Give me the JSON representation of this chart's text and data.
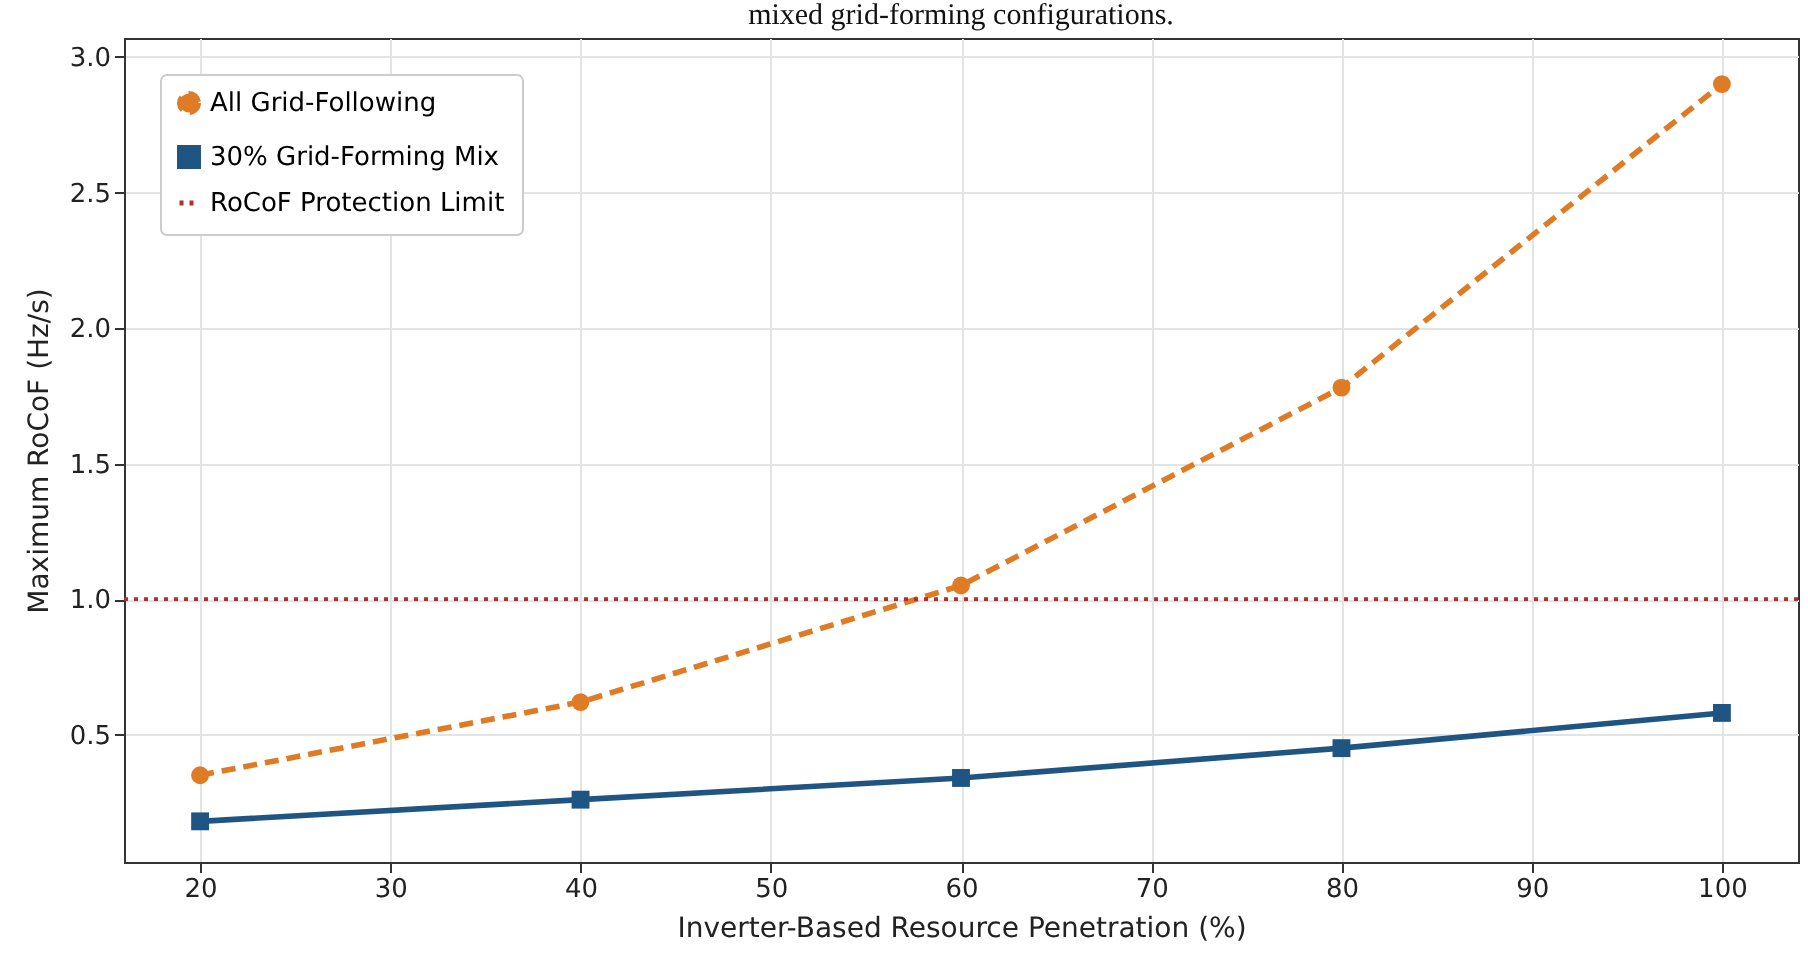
{
  "chart_data": {
    "type": "line",
    "title": "mixed grid-forming configurations.",
    "xlabel": "Inverter-Based Resource Penetration (%)",
    "ylabel": "Maximum RoCoF (Hz/s)",
    "x": [
      20,
      40,
      60,
      80,
      100
    ],
    "series": [
      {
        "name": "All Grid-Following",
        "color": "#e07b25",
        "values": [
          0.35,
          0.62,
          1.05,
          1.78,
          2.9
        ],
        "marker": "circle",
        "line_style": "dashed"
      },
      {
        "name": "30% Grid-Forming Mix",
        "color": "#1f5582",
        "values": [
          0.18,
          0.26,
          0.34,
          0.45,
          0.58
        ],
        "marker": "square",
        "line_style": "solid"
      }
    ],
    "ref_lines": [
      {
        "axis": "y",
        "value": 1.0,
        "label": "RoCoF Protection Limit",
        "color": "#b03030",
        "line_style": "dotted"
      }
    ],
    "xlim": [
      16,
      104
    ],
    "xticks": [
      20,
      30,
      40,
      50,
      60,
      70,
      80,
      90,
      100
    ],
    "ylim": [
      0.03,
      3.07
    ],
    "yticks": [
      0.5,
      {
        "value": 1,
        "label": "1.0"
      },
      1.5,
      {
        "value": 2,
        "label": "2.0"
      },
      2.5,
      {
        "value": 3,
        "label": "3.0"
      }
    ],
    "grid": true,
    "legend": "top left"
  }
}
